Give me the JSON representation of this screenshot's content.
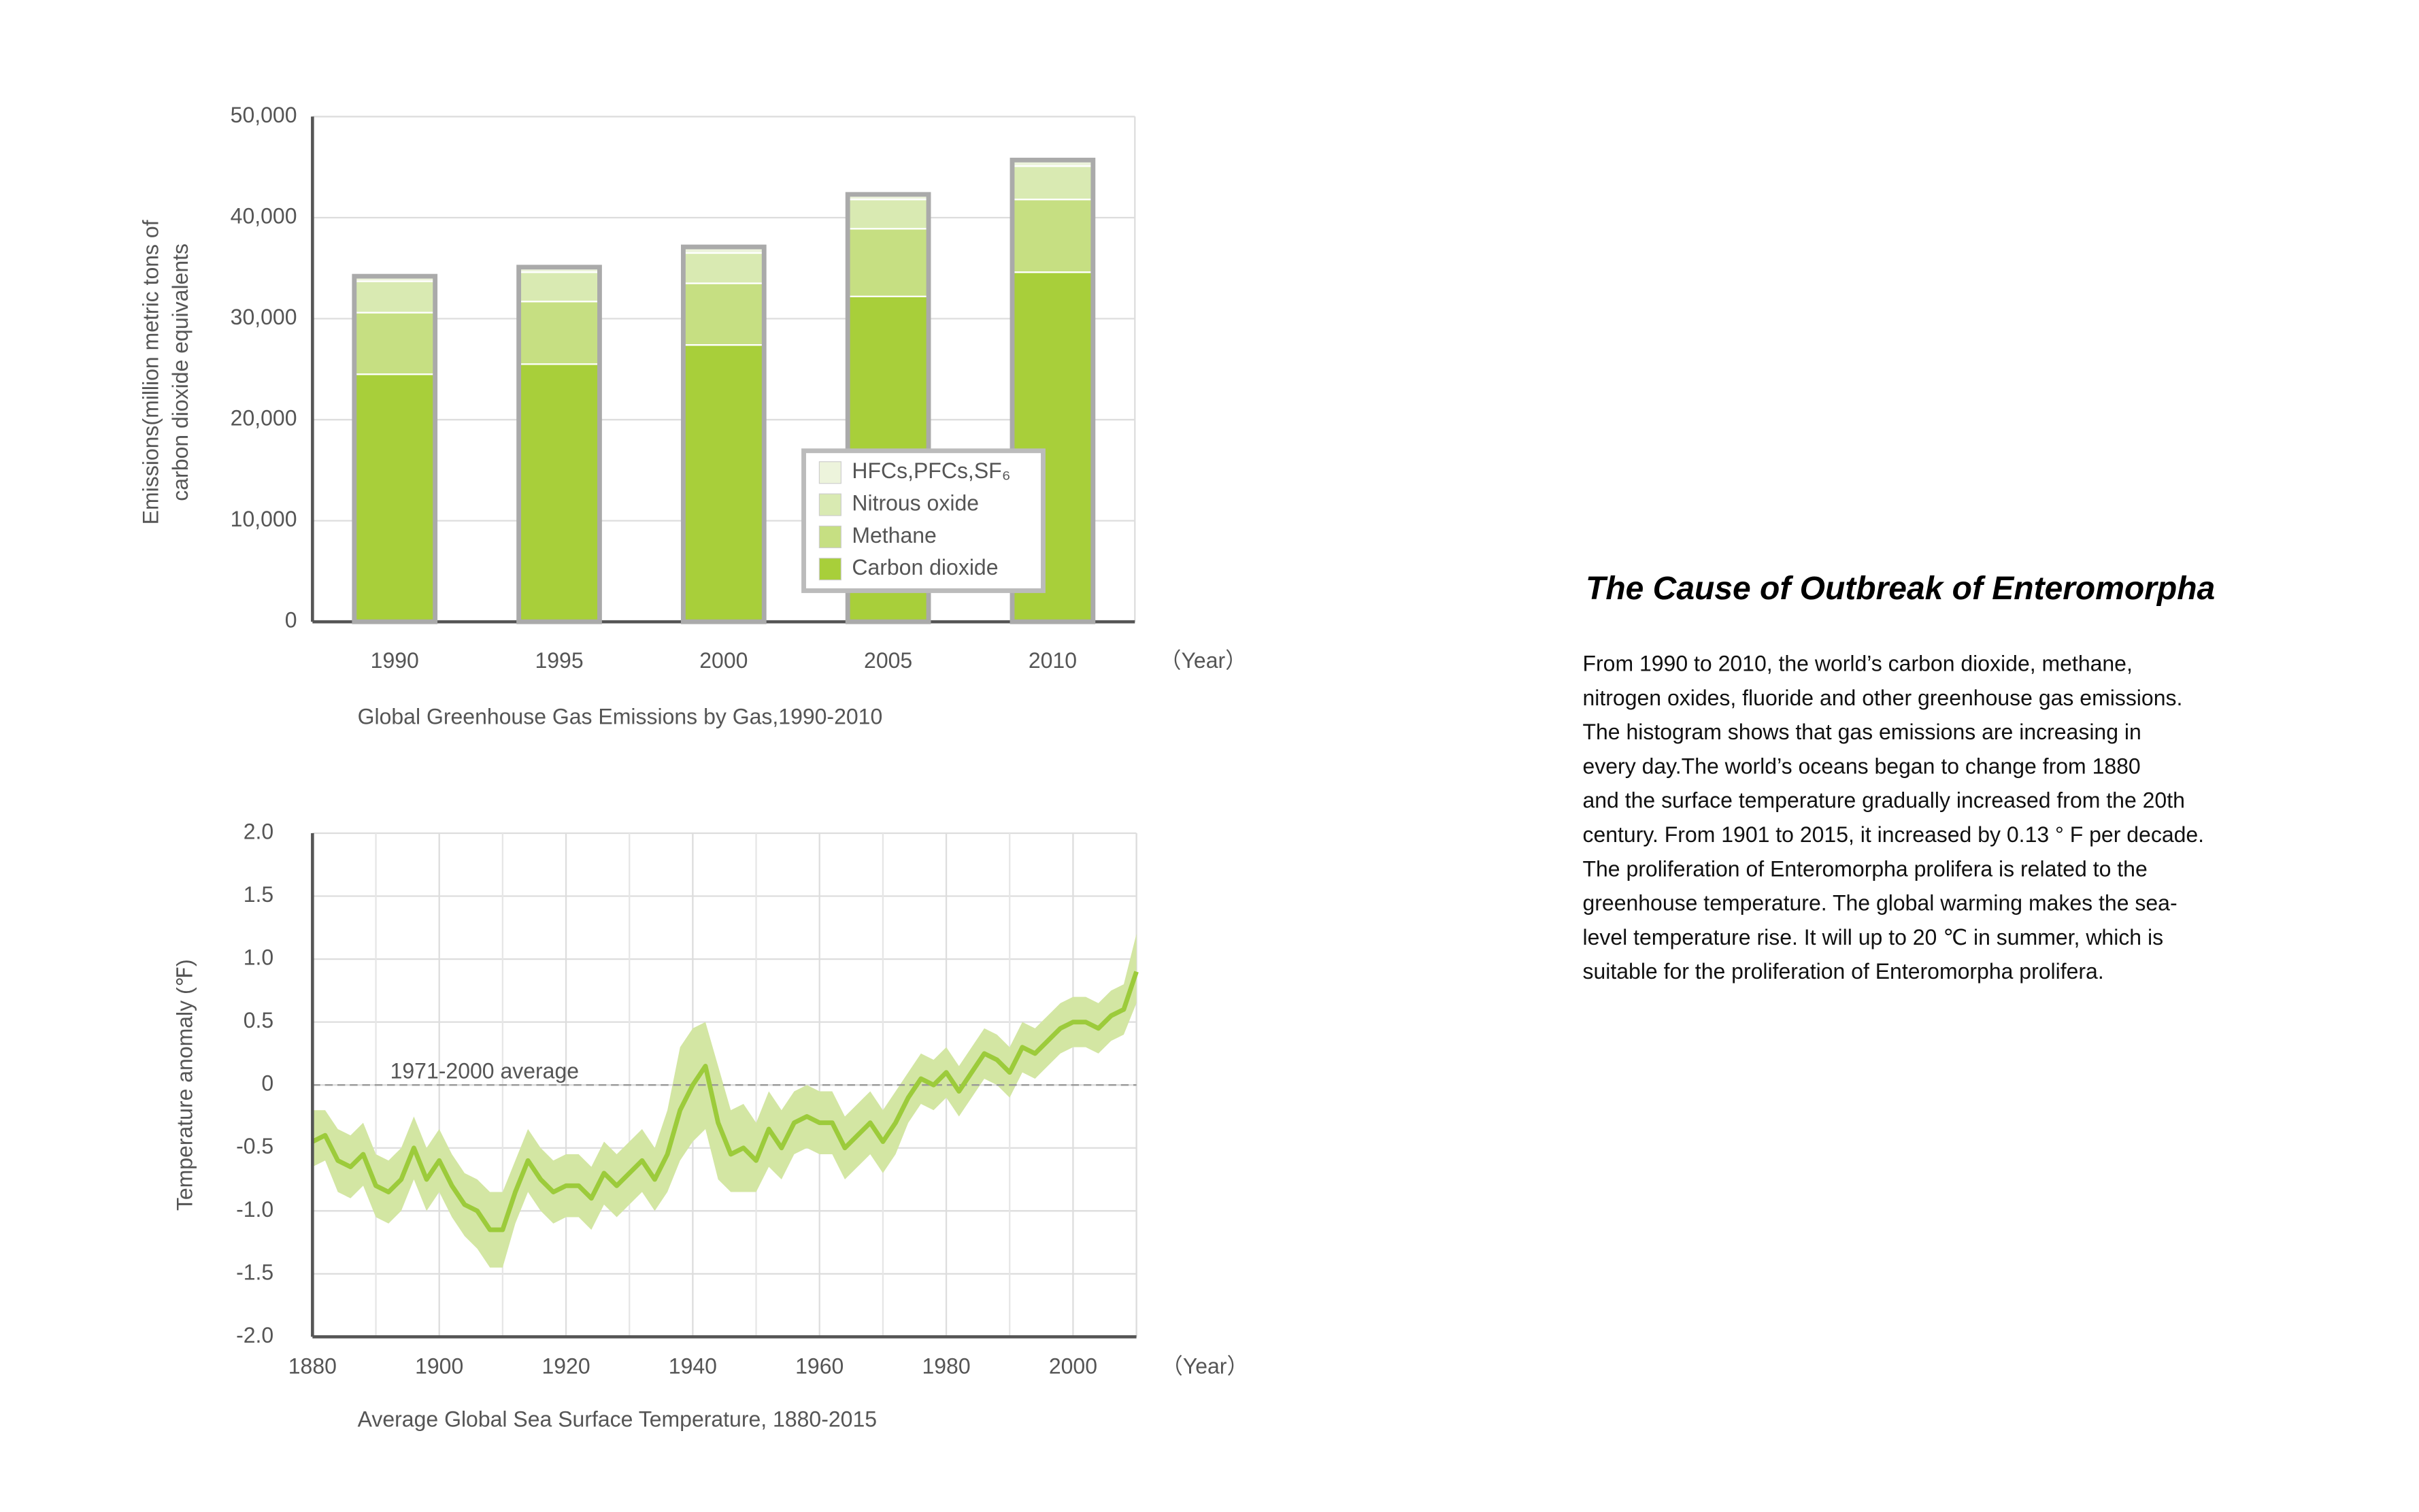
{
  "chart_data": [
    {
      "type": "bar",
      "stacked": true,
      "caption": "Global Greenhouse Gas Emissions by Gas,1990-2010",
      "ylabel": [
        "Emissions(million metric tons of",
        "carbon dioxide equivalents"
      ],
      "xlabel": "（Year）",
      "categories": [
        "1990",
        "1995",
        "2000",
        "2005",
        "2010"
      ],
      "series": [
        {
          "name": "Carbon dioxide",
          "color": "#a8cf3a",
          "values": [
            24500,
            25500,
            27400,
            32200,
            34600
          ]
        },
        {
          "name": "Methane",
          "color": "#c6df82",
          "values": [
            6100,
            6200,
            6100,
            6700,
            7200
          ]
        },
        {
          "name": "Nitrous oxide",
          "color": "#d9eab2",
          "values": [
            3100,
            2900,
            3000,
            2900,
            3300
          ]
        },
        {
          "name": "HFCs,PFCs,SF₆",
          "color": "#edf4dc",
          "values": [
            500,
            500,
            600,
            500,
            600
          ]
        }
      ],
      "ylim": [
        0,
        50000
      ],
      "yticks": [
        0,
        {
          "value": 10000,
          "label": "10,000"
        },
        {
          "value": 20000,
          "label": "20,000"
        },
        {
          "value": 30000,
          "label": "30,000"
        },
        {
          "value": 40000,
          "label": "40,000"
        },
        {
          "value": 50000,
          "label": "50,000"
        }
      ],
      "grid": true,
      "legend": "lower-right"
    },
    {
      "type": "line",
      "caption": "Average Global Sea Surface Temperature, 1880-2015",
      "ylabel": "Temperature anomaly (℉)",
      "xlabel": "（Year）",
      "reference": {
        "value": 0,
        "label": "1971-2000 average"
      },
      "x": [
        1880,
        1882,
        1884,
        1886,
        1888,
        1890,
        1892,
        1894,
        1896,
        1898,
        1900,
        1902,
        1904,
        1906,
        1908,
        1910,
        1912,
        1914,
        1916,
        1918,
        1920,
        1922,
        1924,
        1926,
        1928,
        1930,
        1932,
        1934,
        1936,
        1938,
        1940,
        1942,
        1944,
        1946,
        1948,
        1950,
        1952,
        1954,
        1956,
        1958,
        1960,
        1962,
        1964,
        1966,
        1968,
        1970,
        1972,
        1974,
        1976,
        1978,
        1980,
        1982,
        1984,
        1986,
        1988,
        1990,
        1992,
        1994,
        1996,
        1998,
        2000,
        2002,
        2004,
        2006,
        2008,
        2010
      ],
      "series": [
        {
          "color": "#9ccb3b",
          "band_color": "#d3e6a3",
          "values": [
            -0.45,
            -0.4,
            -0.6,
            -0.65,
            -0.55,
            -0.8,
            -0.85,
            -0.75,
            -0.5,
            -0.75,
            -0.6,
            -0.8,
            -0.95,
            -1.0,
            -1.15,
            -1.15,
            -0.85,
            -0.6,
            -0.75,
            -0.85,
            -0.8,
            -0.8,
            -0.9,
            -0.7,
            -0.8,
            -0.7,
            -0.6,
            -0.75,
            -0.55,
            -0.2,
            0.0,
            0.15,
            -0.3,
            -0.55,
            -0.5,
            -0.6,
            -0.35,
            -0.5,
            -0.3,
            -0.25,
            -0.3,
            -0.3,
            -0.5,
            -0.4,
            -0.3,
            -0.45,
            -0.3,
            -0.1,
            0.05,
            0.0,
            0.1,
            -0.05,
            0.1,
            0.25,
            0.2,
            0.1,
            0.3,
            0.25,
            0.35,
            0.45,
            0.5,
            0.5,
            0.45,
            0.55,
            0.6,
            0.9
          ],
          "lower": [
            -0.65,
            -0.6,
            -0.85,
            -0.9,
            -0.8,
            -1.05,
            -1.1,
            -1.0,
            -0.75,
            -1.0,
            -0.85,
            -1.05,
            -1.2,
            -1.3,
            -1.45,
            -1.45,
            -1.1,
            -0.85,
            -1.0,
            -1.1,
            -1.05,
            -1.05,
            -1.15,
            -0.95,
            -1.05,
            -0.95,
            -0.85,
            -1.0,
            -0.85,
            -0.6,
            -0.45,
            -0.35,
            -0.75,
            -0.85,
            -0.85,
            -0.85,
            -0.65,
            -0.75,
            -0.55,
            -0.5,
            -0.55,
            -0.55,
            -0.75,
            -0.65,
            -0.55,
            -0.7,
            -0.55,
            -0.3,
            -0.15,
            -0.2,
            -0.1,
            -0.25,
            -0.1,
            0.05,
            0.0,
            -0.1,
            0.1,
            0.05,
            0.15,
            0.25,
            0.3,
            0.3,
            0.25,
            0.35,
            0.4,
            0.65
          ],
          "upper": [
            -0.2,
            -0.2,
            -0.35,
            -0.4,
            -0.3,
            -0.55,
            -0.6,
            -0.5,
            -0.25,
            -0.5,
            -0.35,
            -0.55,
            -0.7,
            -0.75,
            -0.85,
            -0.85,
            -0.6,
            -0.35,
            -0.5,
            -0.6,
            -0.55,
            -0.55,
            -0.65,
            -0.45,
            -0.55,
            -0.45,
            -0.35,
            -0.5,
            -0.2,
            0.3,
            0.45,
            0.5,
            0.15,
            -0.2,
            -0.15,
            -0.3,
            -0.05,
            -0.2,
            -0.05,
            0.0,
            -0.05,
            -0.05,
            -0.25,
            -0.15,
            -0.05,
            -0.2,
            -0.05,
            0.1,
            0.25,
            0.2,
            0.3,
            0.15,
            0.3,
            0.45,
            0.4,
            0.3,
            0.5,
            0.45,
            0.55,
            0.65,
            0.7,
            0.7,
            0.65,
            0.75,
            0.8,
            1.2
          ]
        }
      ],
      "xlim": [
        1880,
        2010
      ],
      "xticks": [
        1880,
        1900,
        1920,
        1940,
        1960,
        1980,
        2000
      ],
      "ylim": [
        -2,
        2
      ],
      "yticks": [
        {
          "value": -2,
          "label": "-2.0"
        },
        -1.5,
        {
          "value": -1,
          "label": "-1.0"
        },
        -0.5,
        0,
        0.5,
        {
          "value": 1,
          "label": "1.0"
        },
        1.5,
        {
          "value": 2,
          "label": "2.0"
        }
      ],
      "grid": true
    }
  ],
  "article": {
    "title": "The Cause of Outbreak of Enteromorpha",
    "lines": [
      "From 1990 to 2010, the world’s carbon dioxide, methane,",
      "nitrogen oxides, fluoride and other greenhouse gas emissions.",
      "The histogram shows that gas emissions are increasing in",
      "every day.The world’s oceans began to change from 1880",
      "and the surface temperature gradually increased from the 20th",
      "century. From 1901 to 2015, it increased by 0.13 ° F per decade.",
      "The proliferation of Enteromorpha prolifera is related to the",
      "greenhouse temperature. The global warming makes the sea-",
      "level temperature rise. It will up to 20 ℃ in summer, which is",
      "suitable for the proliferation of Enteromorpha prolifera."
    ]
  }
}
